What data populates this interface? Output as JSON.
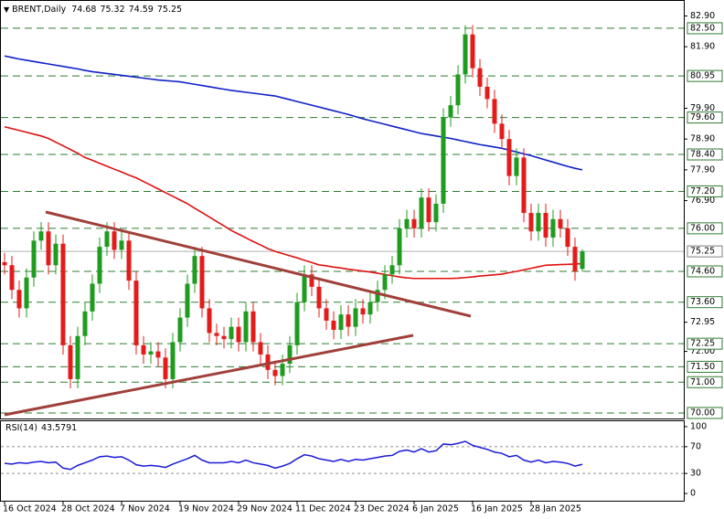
{
  "chart_data": [
    {
      "type": "candlestick",
      "title": "BRENT,Daily",
      "categories": [
        "16 Oct 2024",
        null,
        null,
        null,
        null,
        null,
        null,
        null,
        "28 Oct 2024",
        null,
        null,
        null,
        null,
        null,
        null,
        null,
        "7 Nov 2024",
        null,
        null,
        null,
        null,
        null,
        null,
        null,
        "19 Nov 2024",
        null,
        null,
        null,
        null,
        null,
        null,
        null,
        "29 Nov 2024",
        null,
        null,
        null,
        null,
        null,
        null,
        null,
        "11 Dec 2024",
        null,
        null,
        null,
        null,
        null,
        null,
        null,
        "23 Dec 2024",
        null,
        null,
        null,
        null,
        null,
        null,
        null,
        "6 Jan 2025",
        null,
        null,
        null,
        null,
        null,
        null,
        null,
        "16 Jan 2025",
        null,
        null,
        null,
        null,
        null,
        null,
        null,
        "28 Jan 2025",
        null,
        null,
        null,
        null,
        null,
        null,
        null
      ],
      "open": [
        74.9,
        74.8,
        74.0,
        73.4,
        74.4,
        75.6,
        75.9,
        74.8,
        75.5,
        72.2,
        71.1,
        72.5,
        73.3,
        74.2,
        75.4,
        75.9,
        75.3,
        75.6,
        74.3,
        72.2,
        71.9,
        72.0,
        71.8,
        71.1,
        72.3,
        73.1,
        74.2,
        75.1,
        73.4,
        72.6,
        72.5,
        72.4,
        72.8,
        72.3,
        73.3,
        72.3,
        71.9,
        71.4,
        71.2,
        71.6,
        72.2,
        73.6,
        74.5,
        74.1,
        73.4,
        73.0,
        72.7,
        73.2,
        72.8,
        73.4,
        73.2,
        73.6,
        74.0,
        74.5,
        74.8,
        76.0,
        76.3,
        76.0,
        77.0,
        76.2,
        76.8,
        79.6,
        80.0,
        81.0,
        82.3,
        81.2,
        80.6,
        80.2,
        79.4,
        78.9,
        77.7,
        78.3,
        76.5,
        75.9,
        76.5,
        75.7,
        76.3,
        76.0,
        75.4,
        74.68
      ],
      "high": [
        75.2,
        75.1,
        74.3,
        74.7,
        75.9,
        76.2,
        76.2,
        75.8,
        75.8,
        72.5,
        72.8,
        73.6,
        74.5,
        75.7,
        76.2,
        76.2,
        75.9,
        75.9,
        74.6,
        72.5,
        72.3,
        72.3,
        72.1,
        72.6,
        73.4,
        74.5,
        75.4,
        75.4,
        73.7,
        72.9,
        72.8,
        73.1,
        73.1,
        73.6,
        73.6,
        72.6,
        72.2,
        71.7,
        71.9,
        72.5,
        73.9,
        74.8,
        74.8,
        74.4,
        73.7,
        73.3,
        73.5,
        73.5,
        73.7,
        73.7,
        73.9,
        74.3,
        74.8,
        75.1,
        76.3,
        76.6,
        76.6,
        77.3,
        77.3,
        77.1,
        79.9,
        80.3,
        81.3,
        82.6,
        82.6,
        81.5,
        80.9,
        80.5,
        79.7,
        79.2,
        78.6,
        78.6,
        76.8,
        76.8,
        76.8,
        76.6,
        76.6,
        76.3,
        75.7,
        75.32
      ],
      "low": [
        74.5,
        73.7,
        73.1,
        73.1,
        74.1,
        75.3,
        74.5,
        74.5,
        71.9,
        70.8,
        70.8,
        72.2,
        73.0,
        73.9,
        75.1,
        75.0,
        75.0,
        74.0,
        71.9,
        71.6,
        71.6,
        71.5,
        70.8,
        70.8,
        72.0,
        72.8,
        73.9,
        73.1,
        72.3,
        72.2,
        72.1,
        72.1,
        72.0,
        72.0,
        72.0,
        71.6,
        71.1,
        70.9,
        70.9,
        71.3,
        71.9,
        73.3,
        73.8,
        73.1,
        72.7,
        72.4,
        72.4,
        72.5,
        72.5,
        72.9,
        72.9,
        73.3,
        73.7,
        74.2,
        74.5,
        75.7,
        75.7,
        75.7,
        75.9,
        75.9,
        76.5,
        79.3,
        79.7,
        80.7,
        80.9,
        80.3,
        79.9,
        79.1,
        78.6,
        77.4,
        77.4,
        76.2,
        75.6,
        75.6,
        75.4,
        75.4,
        75.7,
        75.1,
        74.3,
        74.59
      ],
      "close": [
        74.8,
        74.0,
        73.4,
        74.4,
        75.6,
        75.9,
        74.8,
        75.5,
        72.2,
        71.1,
        72.5,
        73.3,
        74.2,
        75.4,
        75.9,
        75.3,
        75.6,
        74.3,
        72.2,
        71.9,
        72.0,
        71.8,
        71.1,
        72.3,
        73.1,
        74.2,
        75.1,
        73.4,
        72.6,
        72.5,
        72.4,
        72.8,
        72.3,
        73.3,
        72.3,
        71.9,
        71.4,
        71.2,
        71.6,
        72.2,
        73.6,
        74.5,
        74.1,
        73.4,
        73.0,
        72.7,
        73.2,
        72.8,
        73.4,
        73.2,
        73.6,
        74.0,
        74.5,
        74.8,
        76.0,
        76.3,
        76.0,
        77.0,
        76.2,
        76.8,
        79.6,
        80.0,
        81.0,
        82.3,
        81.2,
        80.6,
        80.2,
        79.4,
        78.9,
        77.7,
        78.3,
        76.5,
        75.9,
        76.5,
        75.7,
        76.3,
        76.0,
        75.4,
        74.6,
        75.25
      ],
      "up_color": "#1f9b1f",
      "down_color": "#e41b1b",
      "overlays": [
        {
          "color": "#e01010",
          "values": [
            79.3,
            79.24,
            79.18,
            79.12,
            79.06,
            79.0,
            78.92,
            78.8,
            78.68,
            78.56,
            78.44,
            78.3,
            78.21,
            78.11,
            78.02,
            77.92,
            77.83,
            77.73,
            77.64,
            77.52,
            77.4,
            77.28,
            77.16,
            77.04,
            76.92,
            76.8,
            76.65,
            76.51,
            76.37,
            76.22,
            76.08,
            75.93,
            75.81,
            75.69,
            75.57,
            75.46,
            75.34,
            75.25,
            75.18,
            75.11,
            75.04,
            74.96,
            74.89,
            74.81,
            74.78,
            74.74,
            74.71,
            74.67,
            74.64,
            74.61,
            74.58,
            74.54,
            74.5,
            74.46,
            74.42,
            74.39,
            74.37,
            74.37,
            74.37,
            74.37,
            74.37,
            74.37,
            74.38,
            74.4,
            74.42,
            74.45,
            74.47,
            74.49,
            74.51,
            74.56,
            74.6,
            74.65,
            74.7,
            74.75,
            74.8,
            74.81,
            74.82,
            74.83,
            74.84,
            74.85
          ]
        },
        {
          "color": "#1020c8",
          "values": [
            81.6,
            81.55,
            81.5,
            81.46,
            81.42,
            81.38,
            81.34,
            81.3,
            81.26,
            81.22,
            81.18,
            81.13,
            81.09,
            81.06,
            81.03,
            81.0,
            80.97,
            80.94,
            80.91,
            80.88,
            80.85,
            80.82,
            80.8,
            80.78,
            80.76,
            80.72,
            80.68,
            80.64,
            80.6,
            80.56,
            80.52,
            80.48,
            80.45,
            80.42,
            80.39,
            80.36,
            80.33,
            80.3,
            80.24,
            80.18,
            80.12,
            80.06,
            80.0,
            79.94,
            79.88,
            79.82,
            79.76,
            79.7,
            79.63,
            79.56,
            79.5,
            79.44,
            79.38,
            79.32,
            79.26,
            79.2,
            79.14,
            79.08,
            79.04,
            79.0,
            78.96,
            78.92,
            78.87,
            78.82,
            78.77,
            78.72,
            78.68,
            78.64,
            78.6,
            78.54,
            78.48,
            78.42,
            78.36,
            78.29,
            78.22,
            78.15,
            78.08,
            78.01,
            77.95,
            77.9
          ]
        }
      ],
      "ylim": [
        69.85,
        83.27
      ],
      "yticks": [
        {
          "value": 82.9,
          "label": "82.90"
        },
        {
          "value": 81.9,
          "label": "81.90"
        },
        {
          "value": 79.9,
          "label": "79.90"
        },
        {
          "value": 78.9,
          "label": "78.90"
        },
        {
          "value": 77.9,
          "label": "77.90"
        },
        {
          "value": 76.9,
          "label": "76.90"
        },
        {
          "value": 72.95,
          "label": "72.95"
        },
        {
          "value": 72.0,
          "label": "72.00"
        }
      ],
      "levels": [
        {
          "value": 82.5,
          "label": "82.50"
        },
        {
          "value": 80.95,
          "label": "80.95"
        },
        {
          "value": 79.6,
          "label": "79.60"
        },
        {
          "value": 78.4,
          "label": "78.40"
        },
        {
          "value": 77.2,
          "label": "77.20"
        },
        {
          "value": 76.0,
          "label": "76.00"
        },
        {
          "value": 74.6,
          "label": "74.60"
        },
        {
          "value": 73.6,
          "label": "73.60"
        },
        {
          "value": 72.25,
          "label": "72.25"
        },
        {
          "value": 71.5,
          "label": "71.50"
        },
        {
          "value": 71.0,
          "label": "71.00"
        },
        {
          "value": 70.0,
          "label": "70.00"
        }
      ],
      "level_color": "#2e7d32"
    },
    {
      "type": "line",
      "title": "RSI(14)",
      "values": [
        45,
        44,
        46,
        45,
        47,
        48,
        46,
        47,
        38,
        36,
        42,
        46,
        50,
        55,
        56,
        54,
        55,
        50,
        43,
        41,
        42,
        41,
        39,
        44,
        48,
        52,
        57,
        50,
        46,
        46,
        46,
        48,
        46,
        50,
        46,
        44,
        42,
        38,
        41,
        45,
        52,
        58,
        56,
        52,
        50,
        48,
        51,
        48,
        51,
        50,
        52,
        54,
        56,
        57,
        63,
        65,
        62,
        67,
        62,
        64,
        74,
        73,
        75,
        78,
        72,
        69,
        66,
        62,
        60,
        55,
        57,
        50,
        47,
        50,
        46,
        48,
        47,
        45,
        41,
        43.5791
      ],
      "color": "#1a1ad8",
      "ylim": [
        -10.8,
        108.1
      ],
      "yticks": [
        100,
        70,
        30,
        0
      ],
      "levels": [
        70,
        30
      ]
    }
  ]
}
